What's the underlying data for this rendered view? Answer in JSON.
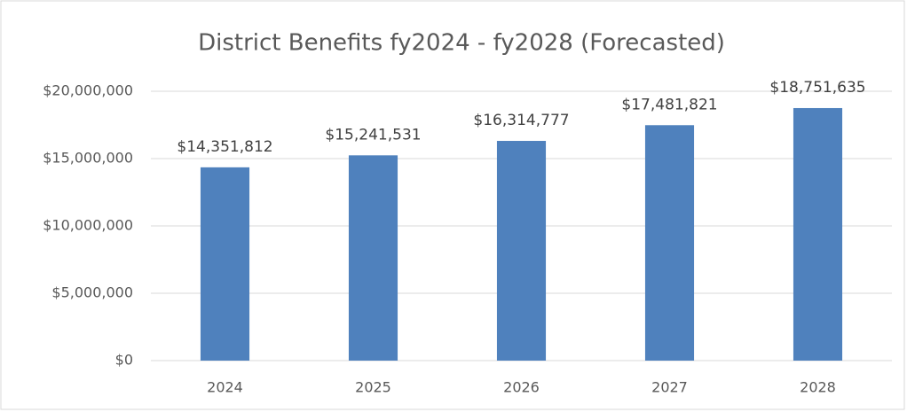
{
  "chart_data": {
    "type": "bar",
    "title": "District Benefits fy2024 - fy2028 (Forecasted)",
    "categories": [
      "2024",
      "2025",
      "2026",
      "2027",
      "2028"
    ],
    "values": [
      14351812,
      15241531,
      16314777,
      17481821,
      18751635
    ],
    "value_labels": [
      "$14,351,812",
      "$15,241,531",
      "$16,314,777",
      "$17,481,821",
      "$18,751,635"
    ],
    "color": "#4f81bd",
    "ylim": [
      0,
      20000000
    ],
    "yticks": [
      {
        "value": 0,
        "label": "$0"
      },
      {
        "value": 5000000,
        "label": "$5,000,000"
      },
      {
        "value": 10000000,
        "label": "$10,000,000"
      },
      {
        "value": 15000000,
        "label": "$15,000,000"
      },
      {
        "value": 20000000,
        "label": "$20,000,000"
      }
    ],
    "grid": true
  }
}
